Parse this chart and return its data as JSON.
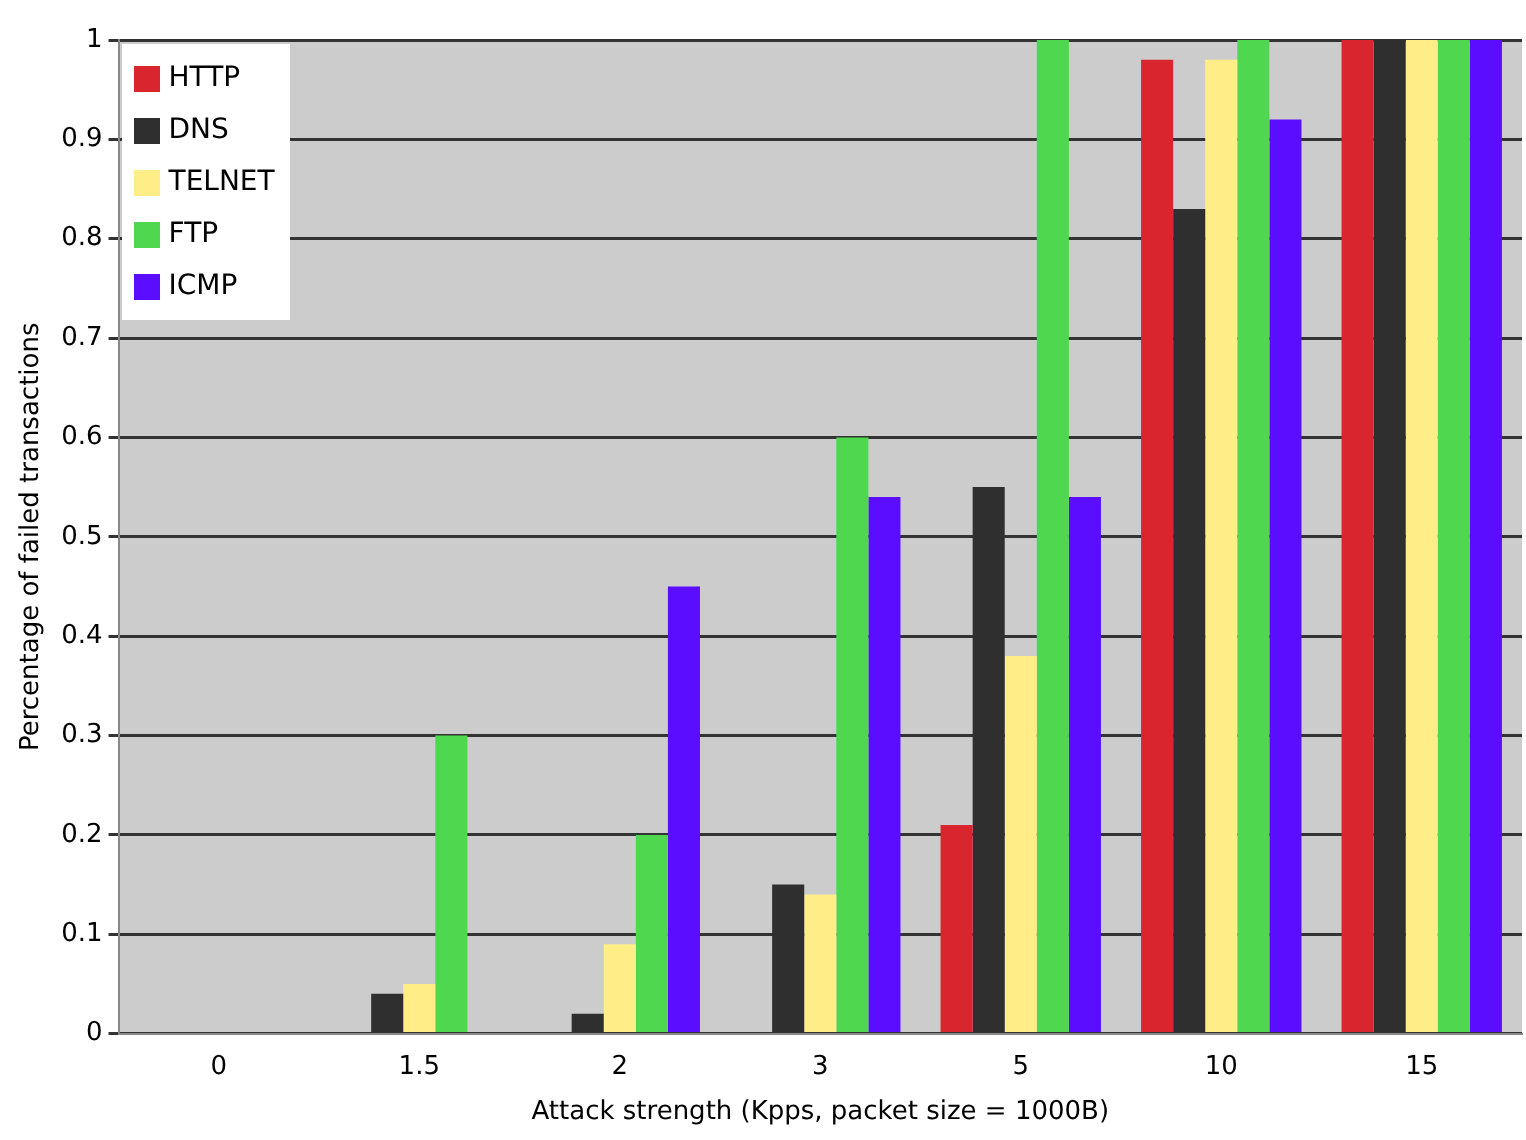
{
  "chart_data": {
    "type": "bar",
    "xlabel": "Attack strength (Kpps, packet size = 1000B)",
    "ylabel": "Percentage of failed transactions",
    "categories": [
      "0",
      "1.5",
      "2",
      "3",
      "5",
      "10",
      "15"
    ],
    "series": [
      {
        "name": "HTTP",
        "color": "#d9262e",
        "values": [
          0,
          0,
          0,
          0,
          0.21,
          0.98,
          1
        ]
      },
      {
        "name": "DNS",
        "color": "#2f2f2f",
        "values": [
          0,
          0.04,
          0.02,
          0.15,
          0.55,
          0.83,
          1
        ]
      },
      {
        "name": "TELNET",
        "color": "#ffee88",
        "values": [
          0,
          0.05,
          0.09,
          0.14,
          0.38,
          0.98,
          1
        ]
      },
      {
        "name": "FTP",
        "color": "#4fd84f",
        "values": [
          0,
          0.3,
          0.2,
          0.6,
          1,
          1,
          1
        ]
      },
      {
        "name": "ICMP",
        "color": "#5a0dff",
        "values": [
          0,
          0,
          0.45,
          0.54,
          0.54,
          0.92,
          1
        ]
      }
    ],
    "ylim": [
      0,
      1
    ],
    "yticks": [
      0,
      0.1,
      0.2,
      0.3,
      0.4,
      0.5,
      0.6,
      0.7,
      0.8,
      0.9,
      1
    ],
    "grid": "y",
    "legend": "top left"
  }
}
